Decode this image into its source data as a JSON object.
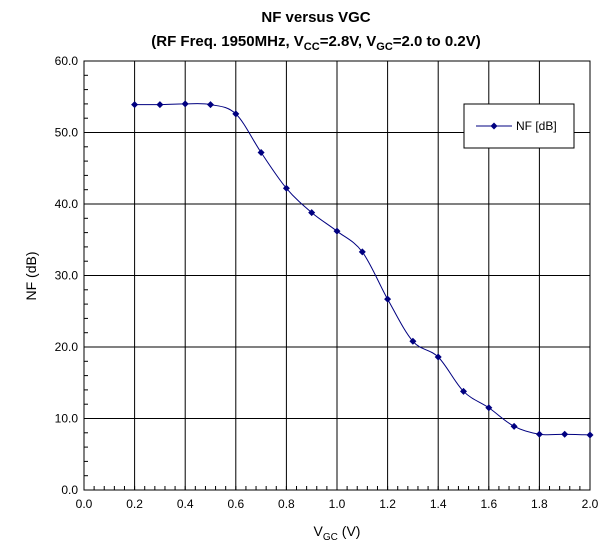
{
  "chart_data": {
    "type": "line",
    "title_line1": "NF versus VGC",
    "subtitle": {
      "pre": "(RF Freq. 1950MHz, V",
      "sub1": "CC",
      "mid": "=2.8V, V",
      "sub2": "GC",
      "post": "=2.0 to 0.2V)"
    },
    "xlabel": {
      "main": "V",
      "sub": "GC",
      "post": " (V)"
    },
    "ylabel": "NF (dB)",
    "xlim": [
      0.0,
      2.0
    ],
    "ylim": [
      0.0,
      60.0
    ],
    "xticks": [
      "0.0",
      "0.2",
      "0.4",
      "0.6",
      "0.8",
      "1.0",
      "1.2",
      "1.4",
      "1.6",
      "1.8",
      "2.0"
    ],
    "yticks": [
      "0.0",
      "10.0",
      "20.0",
      "30.0",
      "40.0",
      "50.0",
      "60.0"
    ],
    "grid": true,
    "legend_position": "top-right",
    "series": [
      {
        "name": "NF [dB]",
        "color": "#000080",
        "x": [
          0.2,
          0.3,
          0.4,
          0.5,
          0.6,
          0.7,
          0.8,
          0.9,
          1.0,
          1.1,
          1.2,
          1.3,
          1.4,
          1.5,
          1.6,
          1.7,
          1.8,
          1.9,
          2.0
        ],
        "y": [
          53.9,
          53.9,
          54.0,
          53.9,
          52.6,
          47.2,
          42.2,
          38.8,
          36.2,
          33.3,
          26.7,
          20.8,
          18.6,
          13.8,
          11.5,
          8.9,
          7.8,
          7.8,
          7.7
        ]
      }
    ]
  }
}
